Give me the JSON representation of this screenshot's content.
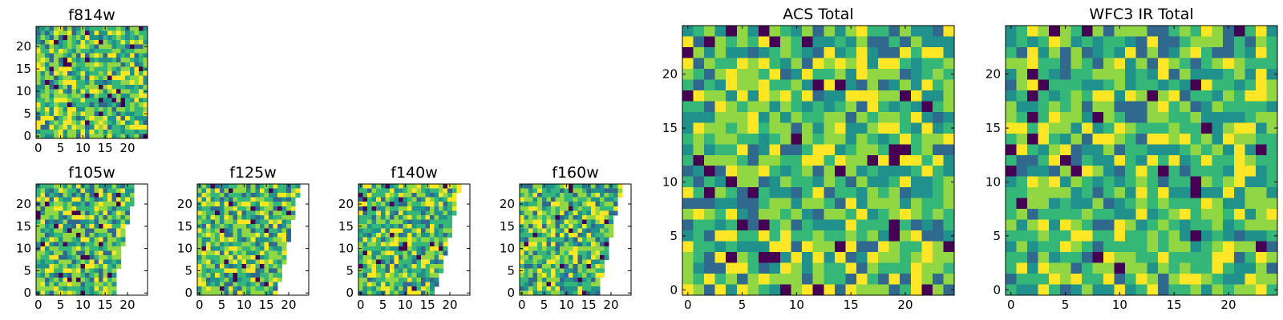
{
  "figure": {
    "description_type": "heatmap grid",
    "colormap": [
      "#440154",
      "#31688e",
      "#21918c",
      "#35b779",
      "#90d743",
      "#fde725"
    ]
  },
  "chart_data": [
    {
      "id": "f814w",
      "type": "heatmap",
      "title": "f814w",
      "grid_size": 25,
      "visible_columns": [],
      "xticks": [
        "0",
        "5",
        "10",
        "15",
        "20"
      ],
      "yticks": [
        "0",
        "5",
        "10",
        "15",
        "20"
      ],
      "xlim": [
        0,
        25
      ],
      "ylim": [
        0,
        25
      ],
      "seed": 11
    },
    {
      "id": "f105w",
      "type": "heatmap",
      "title": "f105w",
      "grid_size": 25,
      "visible_columns": [
        18,
        18,
        18,
        18,
        18,
        18,
        19,
        19,
        19,
        19,
        19,
        20,
        20,
        20,
        20,
        20,
        21,
        21,
        21,
        21,
        22,
        22,
        22,
        22,
        22
      ],
      "xticks": [
        "0",
        "5",
        "10",
        "15",
        "20"
      ],
      "yticks": [
        "0",
        "5",
        "10",
        "15",
        "20"
      ],
      "xlim": [
        0,
        25
      ],
      "ylim": [
        0,
        25
      ],
      "seed": 23
    },
    {
      "id": "f125w",
      "type": "heatmap",
      "title": "f125w",
      "grid_size": 25,
      "visible_columns": [
        18,
        18,
        18,
        19,
        19,
        19,
        19,
        20,
        20,
        20,
        20,
        20,
        21,
        21,
        21,
        21,
        21,
        22,
        22,
        22,
        22,
        22,
        23,
        23,
        23
      ],
      "xticks": [
        "0",
        "5",
        "10",
        "15",
        "20"
      ],
      "yticks": [
        "0",
        "5",
        "10",
        "15",
        "20"
      ],
      "xlim": [
        0,
        25
      ],
      "ylim": [
        0,
        25
      ],
      "seed": 37
    },
    {
      "id": "f140w",
      "type": "heatmap",
      "title": "f140w",
      "grid_size": 25,
      "visible_columns": [
        17,
        17,
        18,
        18,
        18,
        19,
        19,
        19,
        19,
        20,
        20,
        20,
        20,
        21,
        21,
        21,
        21,
        21,
        22,
        22,
        22,
        22,
        22,
        23,
        23
      ],
      "xticks": [
        "0",
        "5",
        "10",
        "15",
        "20"
      ],
      "yticks": [
        "0",
        "5",
        "10",
        "15",
        "20"
      ],
      "xlim": [
        0,
        25
      ],
      "ylim": [
        0,
        25
      ],
      "seed": 41
    },
    {
      "id": "f160w",
      "type": "heatmap",
      "title": "f160w",
      "grid_size": 25,
      "visible_columns": [
        18,
        18,
        18,
        18,
        19,
        19,
        19,
        19,
        20,
        20,
        20,
        20,
        20,
        21,
        21,
        21,
        21,
        21,
        22,
        22,
        22,
        22,
        23,
        23,
        23
      ],
      "xticks": [
        "0",
        "5",
        "10",
        "15",
        "20"
      ],
      "yticks": [
        "0",
        "5",
        "10",
        "15",
        "20"
      ],
      "xlim": [
        0,
        25
      ],
      "ylim": [
        0,
        25
      ],
      "seed": 53
    },
    {
      "id": "acs-total",
      "type": "heatmap",
      "title": "ACS Total",
      "grid_size": 25,
      "visible_columns": [],
      "xticks": [
        "0",
        "5",
        "10",
        "15",
        "20"
      ],
      "yticks": [
        "0",
        "5",
        "10",
        "15",
        "20"
      ],
      "xlim": [
        0,
        25
      ],
      "ylim": [
        0,
        25
      ],
      "seed": 67
    },
    {
      "id": "wfc3-ir-total",
      "type": "heatmap",
      "title": "WFC3 IR Total",
      "grid_size": 25,
      "visible_columns": [],
      "xticks": [
        "0",
        "5",
        "10",
        "15",
        "20"
      ],
      "yticks": [
        "0",
        "5",
        "10",
        "15",
        "20"
      ],
      "xlim": [
        0,
        25
      ],
      "ylim": [
        0,
        25
      ],
      "seed": 79
    }
  ]
}
